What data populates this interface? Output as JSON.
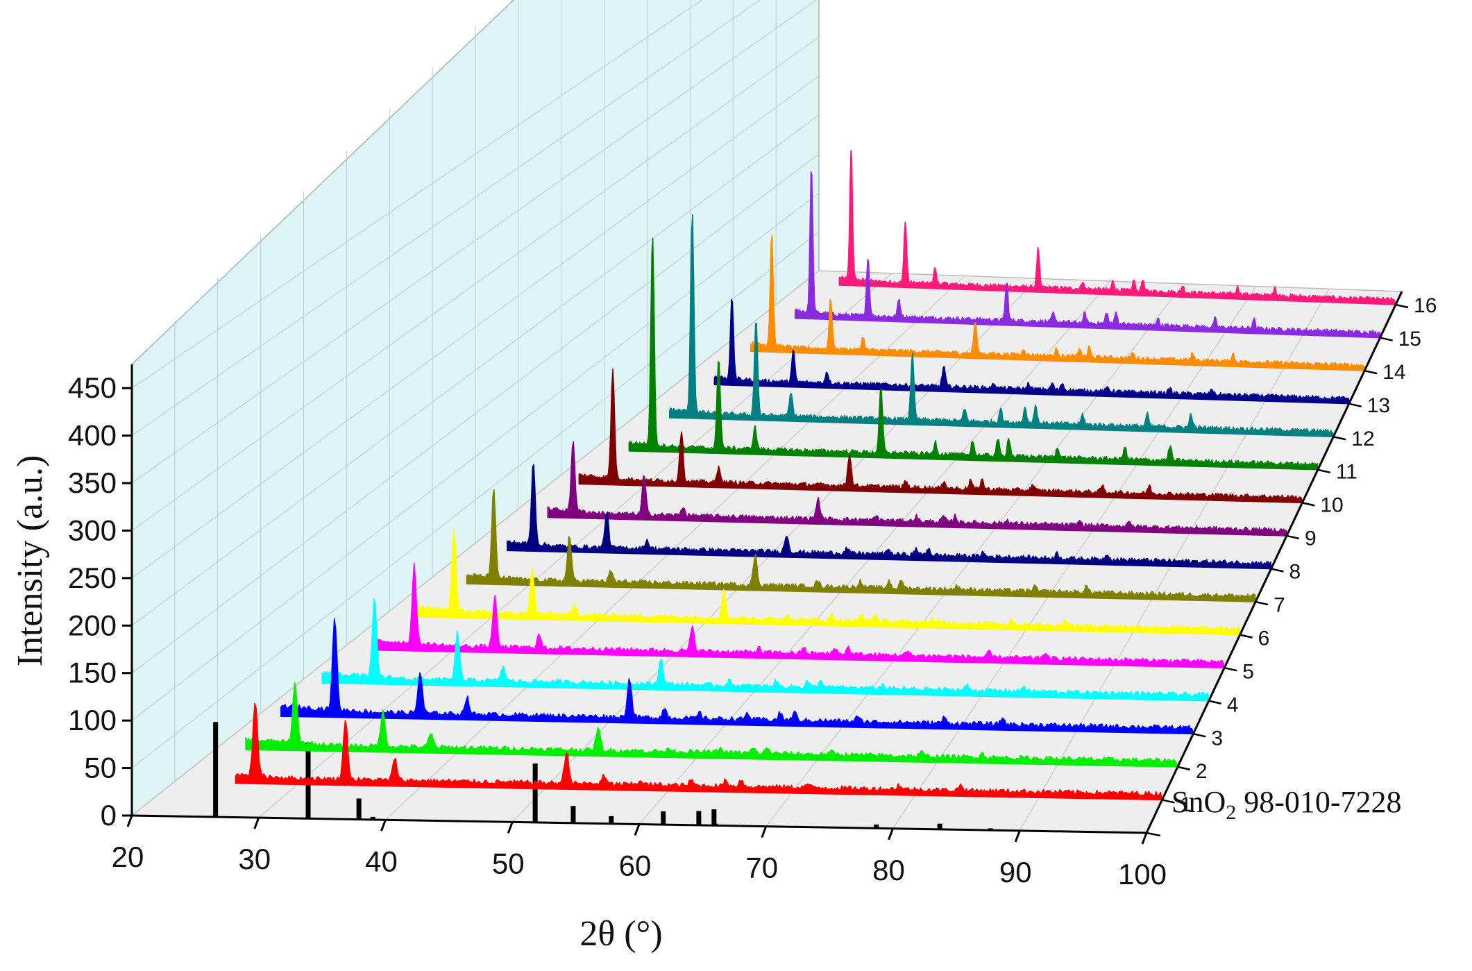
{
  "chart_data": {
    "type": "line",
    "subtype": "3d-waterfall",
    "title": "",
    "xlabel": "2θ (°)",
    "ylabel": "Intensity (a.u.)",
    "xlim": [
      20,
      100
    ],
    "ylim": [
      0,
      475
    ],
    "x_ticks": [
      20,
      30,
      40,
      50,
      60,
      70,
      80,
      90,
      100
    ],
    "y_ticks": [
      0,
      50,
      100,
      150,
      200,
      250,
      300,
      350,
      400,
      450
    ],
    "reference": {
      "label_main": "SnO",
      "label_sub": "2",
      "label_code": " 98-010-7228",
      "x": [
        26.6,
        33.9,
        37.9,
        39.0,
        42.6,
        51.8,
        54.8,
        57.8,
        61.9,
        64.7,
        65.9,
        66.0,
        71.3,
        78.7,
        80.9,
        83.7,
        87.7
      ],
      "values": [
        100,
        80,
        22,
        3,
        1,
        62,
        18,
        8,
        14,
        15,
        17,
        2,
        1,
        4,
        1,
        6,
        2
      ]
    },
    "series": [
      {
        "name": "1",
        "color": "#ff0000",
        "x_start": 25.0,
        "x_end": 100,
        "peaks": [
          [
            26.6,
            80
          ],
          [
            33.9,
            62
          ],
          [
            37.9,
            22
          ],
          [
            51.8,
            33
          ],
          [
            54.8,
            8
          ]
        ]
      },
      {
        "name": "2",
        "color": "#00ee00",
        "x_start": 22.5,
        "x_end": 100,
        "peaks": [
          [
            26.6,
            64
          ],
          [
            33.9,
            37
          ],
          [
            37.9,
            14
          ],
          [
            51.8,
            23
          ]
        ]
      },
      {
        "name": "3",
        "color": "#0000ff",
        "x_start": 22.0,
        "x_end": 100,
        "peaks": [
          [
            26.6,
            100
          ],
          [
            33.9,
            45
          ],
          [
            37.9,
            18
          ],
          [
            51.8,
            42
          ],
          [
            54.8,
            10
          ]
        ]
      },
      {
        "name": "4",
        "color": "#00ffff",
        "x_start": 22.0,
        "x_end": 100,
        "peaks": [
          [
            26.6,
            85
          ],
          [
            33.9,
            52
          ],
          [
            37.9,
            16
          ],
          [
            51.8,
            28
          ]
        ]
      },
      {
        "name": "5",
        "color": "#ff00ff",
        "x_start": 23.0,
        "x_end": 100,
        "peaks": [
          [
            26.6,
            88
          ],
          [
            33.9,
            56
          ],
          [
            37.9,
            14
          ],
          [
            51.8,
            26
          ]
        ]
      },
      {
        "name": "6",
        "color": "#ffff00",
        "x_start": 23.0,
        "x_end": 100,
        "peaks": [
          [
            26.6,
            90
          ],
          [
            33.9,
            50
          ],
          [
            37.9,
            10
          ],
          [
            51.8,
            30
          ]
        ]
      },
      {
        "name": "7",
        "color": "#808000",
        "x_start": 24.0,
        "x_end": 100,
        "peaks": [
          [
            26.6,
            100
          ],
          [
            33.9,
            52
          ],
          [
            37.9,
            12
          ],
          [
            51.8,
            34
          ]
        ]
      },
      {
        "name": "8",
        "color": "#000080",
        "x_start": 24.0,
        "x_end": 100,
        "peaks": [
          [
            26.6,
            96
          ],
          [
            33.9,
            42
          ],
          [
            37.9,
            10
          ],
          [
            51.8,
            20
          ]
        ]
      },
      {
        "name": "9",
        "color": "#800080",
        "x_start": 24.0,
        "x_end": 100,
        "peaks": [
          [
            26.6,
            84
          ],
          [
            33.9,
            46
          ],
          [
            37.9,
            10
          ],
          [
            51.8,
            24
          ]
        ]
      },
      {
        "name": "10",
        "color": "#800000",
        "x_start": 23.0,
        "x_end": 100,
        "peaks": [
          [
            26.6,
            130
          ],
          [
            33.9,
            60
          ],
          [
            37.9,
            18
          ],
          [
            51.8,
            38
          ]
        ]
      },
      {
        "name": "11",
        "color": "#008000",
        "x_start": 24.0,
        "x_end": 100,
        "peaks": [
          [
            26.6,
            255
          ],
          [
            33.9,
            110
          ],
          [
            37.9,
            26
          ],
          [
            51.8,
            78
          ]
        ]
      },
      {
        "name": "12",
        "color": "#008080",
        "x_start": 24.0,
        "x_end": 100,
        "peaks": [
          [
            26.6,
            245
          ],
          [
            33.9,
            118
          ],
          [
            37.9,
            28
          ],
          [
            51.8,
            80
          ]
        ]
      },
      {
        "name": "13",
        "color": "#00008b",
        "x_start": 24.5,
        "x_end": 100,
        "peaks": [
          [
            26.6,
            100
          ],
          [
            33.9,
            38
          ],
          [
            37.9,
            14
          ],
          [
            51.8,
            25
          ]
        ]
      },
      {
        "name": "14",
        "color": "#ff8c00",
        "x_start": 24.0,
        "x_end": 100,
        "peaks": [
          [
            26.6,
            140
          ],
          [
            33.9,
            62
          ],
          [
            37.9,
            16
          ],
          [
            51.8,
            40
          ]
        ]
      },
      {
        "name": "15",
        "color": "#8a2be2",
        "x_start": 24.5,
        "x_end": 100,
        "peaks": [
          [
            26.6,
            185
          ],
          [
            33.9,
            75
          ],
          [
            37.9,
            22
          ],
          [
            51.8,
            48
          ]
        ]
      },
      {
        "name": "16",
        "color": "#ff1a7a",
        "x_start": 25.0,
        "x_end": 100,
        "peaks": [
          [
            26.6,
            170
          ],
          [
            33.9,
            80
          ],
          [
            37.9,
            20
          ],
          [
            51.8,
            50
          ]
        ]
      }
    ]
  }
}
